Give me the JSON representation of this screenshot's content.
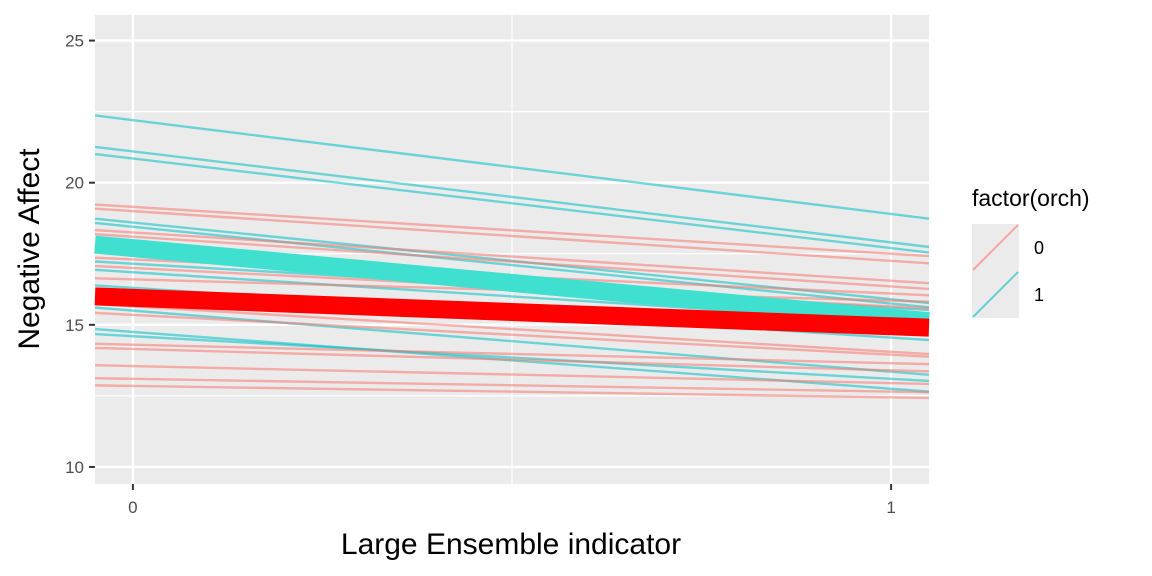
{
  "chart_data": {
    "type": "line",
    "xlabel": "Large Ensemble indicator",
    "ylabel": "Negative Affect",
    "xlim": [
      -0.05,
      1.05
    ],
    "ylim": [
      9.4,
      25.9
    ],
    "x_ticks": [
      0,
      1
    ],
    "x_tick_labels": [
      "0",
      "1"
    ],
    "y_ticks": [
      10,
      15,
      20,
      25
    ],
    "y_tick_labels": [
      "10",
      "15",
      "20",
      "25"
    ],
    "grid": true,
    "legend": {
      "title": "factor(orch)",
      "placement": "right",
      "entries": [
        {
          "label": "0",
          "color": "#F8766D"
        },
        {
          "label": "1",
          "color": "#00BFC4"
        }
      ]
    },
    "colors": {
      "orch0": "#F8766D",
      "orch1": "#00BFC4",
      "mean_orch0": "#FF0000",
      "mean_orch1": "#40E0D0",
      "panel": "#EBEBEB"
    },
    "lines": [
      {
        "group": "1",
        "x": [
          0,
          1
        ],
        "y": [
          22.2,
          18.9
        ]
      },
      {
        "group": "1",
        "x": [
          0,
          1
        ],
        "y": [
          21.1,
          17.9
        ]
      },
      {
        "group": "1",
        "x": [
          0,
          1
        ],
        "y": [
          20.85,
          17.7
        ]
      },
      {
        "group": "0",
        "x": [
          0,
          1
        ],
        "y": [
          19.15,
          17.5
        ]
      },
      {
        "group": "0",
        "x": [
          0,
          1
        ],
        "y": [
          19.0,
          17.25
        ]
      },
      {
        "group": "1",
        "x": [
          0,
          1
        ],
        "y": [
          18.6,
          15.9
        ]
      },
      {
        "group": "1",
        "x": [
          0,
          1
        ],
        "y": [
          18.45,
          15.75
        ]
      },
      {
        "group": "0",
        "x": [
          0,
          1
        ],
        "y": [
          18.25,
          16.55
        ]
      },
      {
        "group": "0",
        "x": [
          0,
          1
        ],
        "y": [
          18.1,
          16.35
        ]
      },
      {
        "group": "0",
        "x": [
          0,
          1
        ],
        "y": [
          17.3,
          16.1
        ]
      },
      {
        "group": "1",
        "x": [
          0,
          1
        ],
        "y": [
          17.15,
          15.6
        ]
      },
      {
        "group": "0",
        "x": [
          0,
          1
        ],
        "y": [
          17.0,
          15.65
        ]
      },
      {
        "group": "1",
        "x": [
          0,
          1
        ],
        "y": [
          16.85,
          15.15
        ]
      },
      {
        "group": "0",
        "x": [
          0,
          1
        ],
        "y": [
          16.6,
          15.85
        ]
      },
      {
        "group": "1",
        "x": [
          0,
          1
        ],
        "y": [
          16.3,
          14.55
        ]
      },
      {
        "group": "0",
        "x": [
          0,
          1
        ],
        "y": [
          15.65,
          14.05
        ]
      },
      {
        "group": "1",
        "x": [
          0,
          1
        ],
        "y": [
          15.5,
          13.35
        ]
      },
      {
        "group": "0",
        "x": [
          0,
          1
        ],
        "y": [
          15.35,
          13.95
        ]
      },
      {
        "group": "1",
        "x": [
          0,
          1
        ],
        "y": [
          14.75,
          12.75
        ]
      },
      {
        "group": "1",
        "x": [
          0,
          1
        ],
        "y": [
          14.6,
          13.1
        ]
      },
      {
        "group": "0",
        "x": [
          0,
          1
        ],
        "y": [
          14.3,
          13.65
        ]
      },
      {
        "group": "0",
        "x": [
          0,
          1
        ],
        "y": [
          14.15,
          13.4
        ]
      },
      {
        "group": "0",
        "x": [
          0,
          1
        ],
        "y": [
          13.55,
          12.95
        ]
      },
      {
        "group": "0",
        "x": [
          0,
          1
        ],
        "y": [
          13.1,
          12.65
        ]
      },
      {
        "group": "0",
        "x": [
          0,
          1
        ],
        "y": [
          12.85,
          12.45
        ]
      }
    ],
    "mean_lines": [
      {
        "group": "1",
        "x": [
          0,
          1
        ],
        "y": [
          17.7,
          15.25
        ],
        "color": "#40E0D0"
      },
      {
        "group": "0",
        "x": [
          0,
          1
        ],
        "y": [
          15.95,
          14.95
        ],
        "color": "#FF0000"
      }
    ]
  }
}
